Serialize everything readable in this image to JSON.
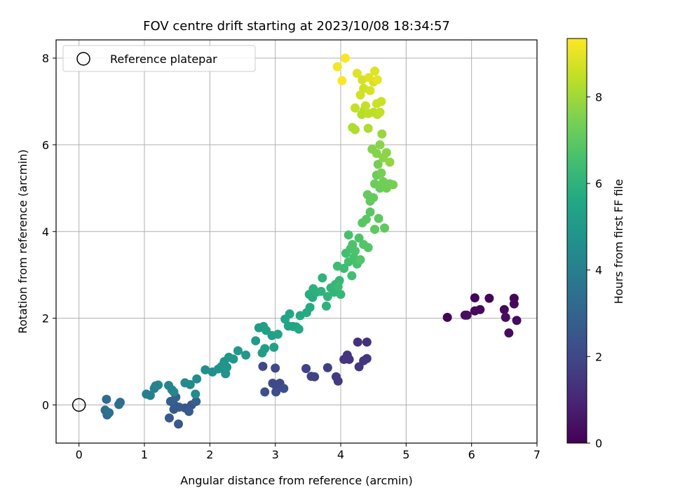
{
  "chart_data": {
    "type": "scatter",
    "title": "FOV centre drift starting at 2023/10/08 18:34:57",
    "xlabel": "Angular distance from reference (arcmin)",
    "ylabel": "Rotation from reference (arcmin)",
    "xlim": [
      -0.35,
      7.0
    ],
    "ylim": [
      -0.88,
      8.42
    ],
    "xticks": [
      0,
      1,
      2,
      3,
      4,
      5,
      6,
      7
    ],
    "yticks": [
      0,
      2,
      4,
      6,
      8
    ],
    "grid": true,
    "legend": {
      "position": "top-left",
      "entries": [
        "Reference platepar"
      ]
    },
    "reference_point": {
      "x": 0,
      "y": 0
    },
    "colorbar": {
      "label": "Hours from first FF file",
      "range": [
        0,
        9.35
      ],
      "ticks": [
        0,
        2,
        4,
        6,
        8
      ],
      "colormap": "viridis"
    },
    "points": [
      {
        "x": 5.63,
        "y": 2.02,
        "c": 0.1
      },
      {
        "x": 6.05,
        "y": 2.47,
        "c": 0.1
      },
      {
        "x": 6.27,
        "y": 2.46,
        "c": 0.1
      },
      {
        "x": 6.65,
        "y": 2.46,
        "c": 0.1
      },
      {
        "x": 6.13,
        "y": 2.2,
        "c": 0.2
      },
      {
        "x": 6.05,
        "y": 2.17,
        "c": 0.2
      },
      {
        "x": 6.5,
        "y": 2.2,
        "c": 0.2
      },
      {
        "x": 6.65,
        "y": 2.33,
        "c": 0.2
      },
      {
        "x": 5.9,
        "y": 2.07,
        "c": 0.3
      },
      {
        "x": 6.52,
        "y": 2.02,
        "c": 0.3
      },
      {
        "x": 6.69,
        "y": 1.95,
        "c": 0.3
      },
      {
        "x": 6.57,
        "y": 1.66,
        "c": 0.3
      },
      {
        "x": 5.93,
        "y": 2.07,
        "c": 0.4
      },
      {
        "x": 4.26,
        "y": 1.45,
        "c": 1.3
      },
      {
        "x": 4.4,
        "y": 1.45,
        "c": 1.3
      },
      {
        "x": 4.1,
        "y": 1.15,
        "c": 1.4
      },
      {
        "x": 4.05,
        "y": 1.05,
        "c": 1.4
      },
      {
        "x": 4.13,
        "y": 1.05,
        "c": 1.4
      },
      {
        "x": 4.35,
        "y": 1.02,
        "c": 1.5
      },
      {
        "x": 4.4,
        "y": 1.07,
        "c": 1.5
      },
      {
        "x": 4.28,
        "y": 0.88,
        "c": 1.5
      },
      {
        "x": 3.93,
        "y": 0.65,
        "c": 1.6
      },
      {
        "x": 3.96,
        "y": 0.55,
        "c": 1.6
      },
      {
        "x": 3.8,
        "y": 0.86,
        "c": 1.7
      },
      {
        "x": 3.47,
        "y": 0.84,
        "c": 1.8
      },
      {
        "x": 3.55,
        "y": 0.66,
        "c": 1.8
      },
      {
        "x": 3.6,
        "y": 0.65,
        "c": 1.8
      },
      {
        "x": 2.81,
        "y": 0.89,
        "c": 2.0
      },
      {
        "x": 3.0,
        "y": 0.85,
        "c": 2.0
      },
      {
        "x": 2.96,
        "y": 0.5,
        "c": 2.1
      },
      {
        "x": 3.07,
        "y": 0.5,
        "c": 2.1
      },
      {
        "x": 3.02,
        "y": 0.42,
        "c": 2.1
      },
      {
        "x": 3.13,
        "y": 0.38,
        "c": 2.2
      },
      {
        "x": 2.84,
        "y": 0.3,
        "c": 2.2
      },
      {
        "x": 3.01,
        "y": 0.3,
        "c": 2.2
      },
      {
        "x": 1.72,
        "y": 0.0,
        "c": 2.5
      },
      {
        "x": 1.62,
        "y": -0.07,
        "c": 2.5
      },
      {
        "x": 1.45,
        "y": -0.1,
        "c": 2.6
      },
      {
        "x": 1.47,
        "y": -0.02,
        "c": 2.6
      },
      {
        "x": 1.52,
        "y": -0.44,
        "c": 2.6
      },
      {
        "x": 1.38,
        "y": -0.3,
        "c": 2.6
      },
      {
        "x": 1.53,
        "y": -0.05,
        "c": 2.7
      },
      {
        "x": 1.68,
        "y": -0.15,
        "c": 2.7
      },
      {
        "x": 1.4,
        "y": 0.08,
        "c": 2.8
      },
      {
        "x": 1.79,
        "y": 0.08,
        "c": 2.8
      },
      {
        "x": 1.48,
        "y": 0.18,
        "c": 2.9
      },
      {
        "x": 0.42,
        "y": 0.13,
        "c": 3.3
      },
      {
        "x": 0.4,
        "y": -0.12,
        "c": 3.3
      },
      {
        "x": 0.43,
        "y": -0.23,
        "c": 3.3
      },
      {
        "x": 0.46,
        "y": -0.18,
        "c": 3.4
      },
      {
        "x": 0.61,
        "y": 0.01,
        "c": 3.4
      },
      {
        "x": 0.63,
        "y": 0.06,
        "c": 3.4
      },
      {
        "x": 1.03,
        "y": 0.25,
        "c": 4.0
      },
      {
        "x": 1.09,
        "y": 0.22,
        "c": 4.0
      },
      {
        "x": 1.15,
        "y": 0.38,
        "c": 4.1
      },
      {
        "x": 1.17,
        "y": 0.44,
        "c": 4.1
      },
      {
        "x": 1.21,
        "y": 0.46,
        "c": 4.2
      },
      {
        "x": 1.37,
        "y": 0.45,
        "c": 4.2
      },
      {
        "x": 1.42,
        "y": 0.35,
        "c": 4.3
      },
      {
        "x": 1.45,
        "y": 0.3,
        "c": 4.3
      },
      {
        "x": 1.62,
        "y": 0.51,
        "c": 4.4
      },
      {
        "x": 1.7,
        "y": 0.47,
        "c": 4.4
      },
      {
        "x": 1.78,
        "y": 0.25,
        "c": 4.5
      },
      {
        "x": 1.8,
        "y": 0.6,
        "c": 4.5
      },
      {
        "x": 1.93,
        "y": 0.81,
        "c": 4.6
      },
      {
        "x": 2.04,
        "y": 0.76,
        "c": 4.6
      },
      {
        "x": 2.13,
        "y": 0.83,
        "c": 4.7
      },
      {
        "x": 2.18,
        "y": 0.89,
        "c": 4.7
      },
      {
        "x": 2.24,
        "y": 0.72,
        "c": 4.7
      },
      {
        "x": 2.26,
        "y": 0.87,
        "c": 4.8
      },
      {
        "x": 2.22,
        "y": 1.0,
        "c": 4.8
      },
      {
        "x": 2.29,
        "y": 1.1,
        "c": 4.9
      },
      {
        "x": 2.36,
        "y": 1.06,
        "c": 4.9
      },
      {
        "x": 2.43,
        "y": 1.25,
        "c": 5.0
      },
      {
        "x": 2.55,
        "y": 1.15,
        "c": 5.0
      },
      {
        "x": 2.7,
        "y": 1.48,
        "c": 5.1
      },
      {
        "x": 2.75,
        "y": 1.78,
        "c": 5.1
      },
      {
        "x": 2.8,
        "y": 1.2,
        "c": 5.2
      },
      {
        "x": 2.84,
        "y": 1.3,
        "c": 5.2
      },
      {
        "x": 2.82,
        "y": 1.81,
        "c": 5.2
      },
      {
        "x": 2.86,
        "y": 1.72,
        "c": 5.3
      },
      {
        "x": 2.95,
        "y": 1.6,
        "c": 5.3
      },
      {
        "x": 2.98,
        "y": 1.33,
        "c": 5.3
      },
      {
        "x": 3.04,
        "y": 1.63,
        "c": 5.4
      },
      {
        "x": 3.15,
        "y": 1.98,
        "c": 5.4
      },
      {
        "x": 3.2,
        "y": 1.82,
        "c": 5.4
      },
      {
        "x": 3.22,
        "y": 2.1,
        "c": 5.5
      },
      {
        "x": 3.27,
        "y": 1.81,
        "c": 5.5
      },
      {
        "x": 3.32,
        "y": 1.8,
        "c": 5.5
      },
      {
        "x": 3.36,
        "y": 1.75,
        "c": 5.6
      },
      {
        "x": 3.38,
        "y": 2.06,
        "c": 5.6
      },
      {
        "x": 3.48,
        "y": 2.13,
        "c": 5.7
      },
      {
        "x": 3.53,
        "y": 2.25,
        "c": 5.7
      },
      {
        "x": 3.52,
        "y": 2.55,
        "c": 5.8
      },
      {
        "x": 3.57,
        "y": 2.48,
        "c": 5.8
      },
      {
        "x": 3.63,
        "y": 2.6,
        "c": 5.9
      },
      {
        "x": 3.58,
        "y": 2.68,
        "c": 5.9
      },
      {
        "x": 3.7,
        "y": 2.62,
        "c": 6.0
      },
      {
        "x": 3.72,
        "y": 2.93,
        "c": 6.0
      },
      {
        "x": 3.78,
        "y": 2.28,
        "c": 6.0
      },
      {
        "x": 3.8,
        "y": 2.5,
        "c": 6.1
      },
      {
        "x": 3.85,
        "y": 2.7,
        "c": 6.1
      },
      {
        "x": 3.9,
        "y": 2.6,
        "c": 6.1
      },
      {
        "x": 3.92,
        "y": 2.78,
        "c": 6.2
      },
      {
        "x": 3.98,
        "y": 2.87,
        "c": 6.2
      },
      {
        "x": 4.0,
        "y": 2.55,
        "c": 6.2
      },
      {
        "x": 3.96,
        "y": 2.73,
        "c": 6.3
      },
      {
        "x": 3.95,
        "y": 3.2,
        "c": 6.4
      },
      {
        "x": 4.05,
        "y": 3.15,
        "c": 6.4
      },
      {
        "x": 4.08,
        "y": 3.5,
        "c": 6.5
      },
      {
        "x": 4.12,
        "y": 3.3,
        "c": 6.5
      },
      {
        "x": 4.17,
        "y": 2.98,
        "c": 6.5
      },
      {
        "x": 4.15,
        "y": 3.6,
        "c": 6.6
      },
      {
        "x": 4.2,
        "y": 3.4,
        "c": 6.6
      },
      {
        "x": 4.25,
        "y": 3.25,
        "c": 6.6
      },
      {
        "x": 4.12,
        "y": 3.92,
        "c": 6.6
      },
      {
        "x": 4.18,
        "y": 3.7,
        "c": 6.7
      },
      {
        "x": 4.22,
        "y": 3.55,
        "c": 6.7
      },
      {
        "x": 4.28,
        "y": 3.85,
        "c": 6.7
      },
      {
        "x": 4.3,
        "y": 3.35,
        "c": 6.8
      },
      {
        "x": 4.35,
        "y": 3.7,
        "c": 6.8
      },
      {
        "x": 4.42,
        "y": 3.63,
        "c": 6.8
      },
      {
        "x": 4.33,
        "y": 4.2,
        "c": 6.9
      },
      {
        "x": 4.39,
        "y": 4.28,
        "c": 6.9
      },
      {
        "x": 4.45,
        "y": 4.45,
        "c": 6.9
      },
      {
        "x": 4.52,
        "y": 4.05,
        "c": 7.0
      },
      {
        "x": 4.58,
        "y": 4.3,
        "c": 7.0
      },
      {
        "x": 4.67,
        "y": 4.08,
        "c": 7.0
      },
      {
        "x": 4.41,
        "y": 4.85,
        "c": 7.1
      },
      {
        "x": 4.45,
        "y": 4.7,
        "c": 7.1
      },
      {
        "x": 4.5,
        "y": 4.78,
        "c": 7.1
      },
      {
        "x": 4.52,
        "y": 5.1,
        "c": 7.2
      },
      {
        "x": 4.55,
        "y": 5.3,
        "c": 7.2
      },
      {
        "x": 4.6,
        "y": 5.0,
        "c": 7.2
      },
      {
        "x": 4.65,
        "y": 5.15,
        "c": 7.3
      },
      {
        "x": 4.7,
        "y": 5.0,
        "c": 7.3
      },
      {
        "x": 4.75,
        "y": 5.1,
        "c": 7.3
      },
      {
        "x": 4.8,
        "y": 5.08,
        "c": 7.4
      },
      {
        "x": 4.62,
        "y": 5.35,
        "c": 7.4
      },
      {
        "x": 4.57,
        "y": 5.55,
        "c": 7.4
      },
      {
        "x": 4.48,
        "y": 5.9,
        "c": 7.6
      },
      {
        "x": 4.55,
        "y": 5.8,
        "c": 7.6
      },
      {
        "x": 4.6,
        "y": 6.0,
        "c": 7.7
      },
      {
        "x": 4.65,
        "y": 5.7,
        "c": 7.7
      },
      {
        "x": 4.7,
        "y": 5.82,
        "c": 7.7
      },
      {
        "x": 4.75,
        "y": 5.6,
        "c": 7.8
      },
      {
        "x": 4.63,
        "y": 6.25,
        "c": 7.9
      },
      {
        "x": 4.18,
        "y": 6.4,
        "c": 8.2
      },
      {
        "x": 4.22,
        "y": 6.35,
        "c": 8.2
      },
      {
        "x": 4.42,
        "y": 6.38,
        "c": 8.2
      },
      {
        "x": 4.32,
        "y": 6.7,
        "c": 8.3
      },
      {
        "x": 4.36,
        "y": 6.8,
        "c": 8.3
      },
      {
        "x": 4.42,
        "y": 6.72,
        "c": 8.4
      },
      {
        "x": 4.5,
        "y": 6.75,
        "c": 8.4
      },
      {
        "x": 4.56,
        "y": 6.7,
        "c": 8.4
      },
      {
        "x": 4.6,
        "y": 6.75,
        "c": 8.5
      },
      {
        "x": 4.22,
        "y": 6.85,
        "c": 8.5
      },
      {
        "x": 4.38,
        "y": 6.9,
        "c": 8.5
      },
      {
        "x": 4.55,
        "y": 6.95,
        "c": 8.6
      },
      {
        "x": 4.62,
        "y": 7.0,
        "c": 8.6
      },
      {
        "x": 4.3,
        "y": 7.15,
        "c": 8.7
      },
      {
        "x": 4.35,
        "y": 7.3,
        "c": 8.7
      },
      {
        "x": 4.45,
        "y": 7.25,
        "c": 8.8
      },
      {
        "x": 4.5,
        "y": 7.45,
        "c": 8.8
      },
      {
        "x": 4.33,
        "y": 7.5,
        "c": 8.8
      },
      {
        "x": 4.25,
        "y": 7.65,
        "c": 8.9
      },
      {
        "x": 4.43,
        "y": 7.55,
        "c": 8.9
      },
      {
        "x": 4.52,
        "y": 7.7,
        "c": 8.9
      },
      {
        "x": 4.56,
        "y": 7.5,
        "c": 9.0
      },
      {
        "x": 3.95,
        "y": 7.8,
        "c": 9.2
      },
      {
        "x": 4.02,
        "y": 7.48,
        "c": 9.3
      },
      {
        "x": 4.07,
        "y": 8.0,
        "c": 9.3
      }
    ]
  }
}
